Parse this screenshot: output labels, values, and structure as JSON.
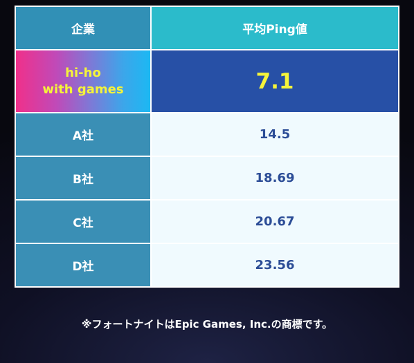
{
  "table": {
    "headers": {
      "company": "企業",
      "ping": "平均Ping値"
    },
    "highlight": {
      "name_line1": "hi-ho",
      "name_line2": "with games",
      "value": "7.1"
    },
    "rows": [
      {
        "company": "A社",
        "value": "14.5"
      },
      {
        "company": "B社",
        "value": "18.69"
      },
      {
        "company": "C社",
        "value": "20.67"
      },
      {
        "company": "D社",
        "value": "23.56"
      }
    ]
  },
  "footnote": "※フォートナイトはEpic Games, Inc.の商標です。",
  "colors": {
    "header_company": "#3190b6",
    "header_ping": "#2bbbcb",
    "highlight_value_bg": "#2750a6",
    "highlight_text": "#f5f43a",
    "row_company_bg": "#3a8fb5",
    "row_value_bg": "#f0fafe",
    "row_value_text": "#2b4c96"
  }
}
